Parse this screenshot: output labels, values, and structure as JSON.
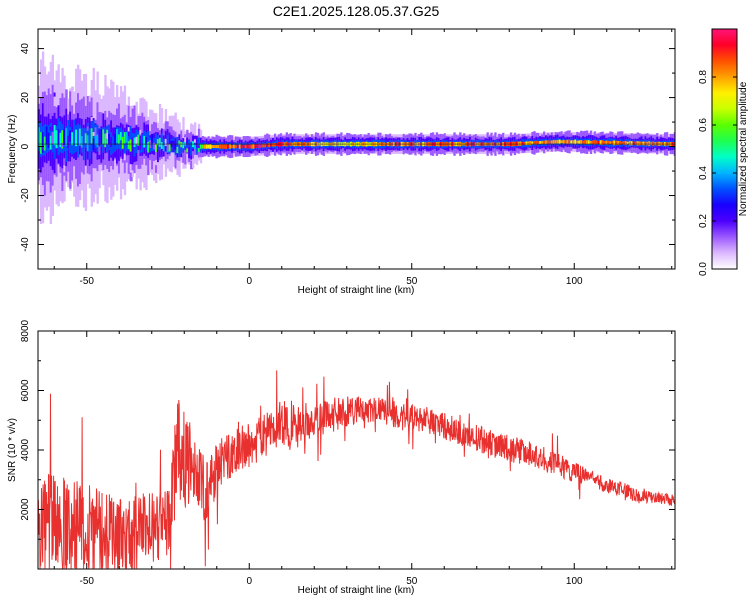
{
  "figure_title": "C2E1.2025.128.05.37.G25",
  "colors": {
    "snr_line": "#e8312f",
    "axis": "#000000",
    "colormap": [
      "#ffffff",
      "#dcb8ff",
      "#9b59ff",
      "#4b00ff",
      "#1900ff",
      "#0050ff",
      "#00b4ff",
      "#00ffc8",
      "#1eff50",
      "#5aff00",
      "#c8ff00",
      "#fff000",
      "#ffa000",
      "#ff5000",
      "#ff0028",
      "#ff1478"
    ]
  },
  "chart_data": [
    {
      "type": "heatmap",
      "xlabel": "Height of straight line (km)",
      "ylabel": "Frequency (Hz)",
      "xlim": [
        -65,
        131
      ],
      "ylim": [
        -50,
        48
      ],
      "xticks": [
        -50,
        0,
        50,
        100
      ],
      "yticks": [
        -40,
        -20,
        0,
        20,
        40
      ],
      "colorbar": {
        "label": "Normalized spectral amplitude",
        "range": [
          0.0,
          1.0
        ],
        "ticks": [
          "0.0",
          "0.2",
          "0.4",
          "0.6",
          "0.8"
        ],
        "tick_values": [
          0.0,
          0.2,
          0.4,
          0.6,
          0.8
        ]
      },
      "ridge": [
        {
          "x": -65,
          "center_hz": 3,
          "spread_hz": 14,
          "amplitude": 0.3
        },
        {
          "x": -50,
          "center_hz": 3,
          "spread_hz": 11,
          "amplitude": 0.35
        },
        {
          "x": -35,
          "center_hz": 2,
          "spread_hz": 8,
          "amplitude": 0.4
        },
        {
          "x": -20,
          "center_hz": 0,
          "spread_hz": 4,
          "amplitude": 0.55
        },
        {
          "x": -10,
          "center_hz": 0,
          "spread_hz": 3,
          "amplitude": 0.9
        },
        {
          "x": 0,
          "center_hz": 0,
          "spread_hz": 3,
          "amplitude": 0.95
        },
        {
          "x": 10,
          "center_hz": 1,
          "spread_hz": 3,
          "amplitude": 0.95
        },
        {
          "x": 30,
          "center_hz": 1,
          "spread_hz": 3,
          "amplitude": 0.75
        },
        {
          "x": 50,
          "center_hz": 1,
          "spread_hz": 3,
          "amplitude": 0.9
        },
        {
          "x": 80,
          "center_hz": 1,
          "spread_hz": 3,
          "amplitude": 0.9
        },
        {
          "x": 95,
          "center_hz": 2,
          "spread_hz": 3,
          "amplitude": 0.85
        },
        {
          "x": 131,
          "center_hz": 1,
          "spread_hz": 3,
          "amplitude": 0.9
        }
      ]
    },
    {
      "type": "line",
      "xlabel": "Height of straight line (km)",
      "ylabel": "SNR (10 * v/v)",
      "xlim": [
        -65,
        131
      ],
      "ylim": [
        0,
        8000
      ],
      "xticks": [
        -50,
        0,
        50,
        100
      ],
      "yticks": [
        2000,
        4000,
        6000,
        8000
      ],
      "series": [
        {
          "color": "#e8312f",
          "x": [
            -65,
            -60,
            -55,
            -50,
            -45,
            -40,
            -35,
            -30,
            -25,
            -22,
            -20,
            -17,
            -15,
            -12,
            -10,
            -5,
            0,
            5,
            8,
            10,
            12,
            15,
            20,
            25,
            30,
            35,
            40,
            45,
            50,
            55,
            60,
            65,
            70,
            75,
            80,
            85,
            90,
            95,
            100,
            105,
            110,
            115,
            118,
            120,
            125,
            131
          ],
          "y": [
            1600,
            1500,
            1300,
            1200,
            1100,
            1000,
            1200,
            1400,
            1600,
            4000,
            3800,
            3200,
            2600,
            2900,
            3400,
            3900,
            4200,
            4500,
            4700,
            4900,
            4900,
            4950,
            5000,
            5150,
            5300,
            5400,
            5300,
            5200,
            5100,
            5000,
            4800,
            4600,
            4400,
            4200,
            4050,
            3900,
            3700,
            3500,
            3250,
            3050,
            2800,
            2700,
            2500,
            2450,
            2400,
            2300
          ],
          "noise_amplitude": [
            1800,
            1800,
            1700,
            1700,
            1600,
            1400,
            1300,
            1200,
            1200,
            1800,
            1700,
            1500,
            1300,
            1000,
            900,
            800,
            800,
            700,
            900,
            900,
            800,
            700,
            600,
            600,
            500,
            450,
            450,
            450,
            450,
            450,
            450,
            450,
            450,
            450,
            450,
            450,
            400,
            400,
            350,
            300,
            250,
            250,
            250,
            200,
            200,
            200
          ]
        }
      ]
    }
  ]
}
